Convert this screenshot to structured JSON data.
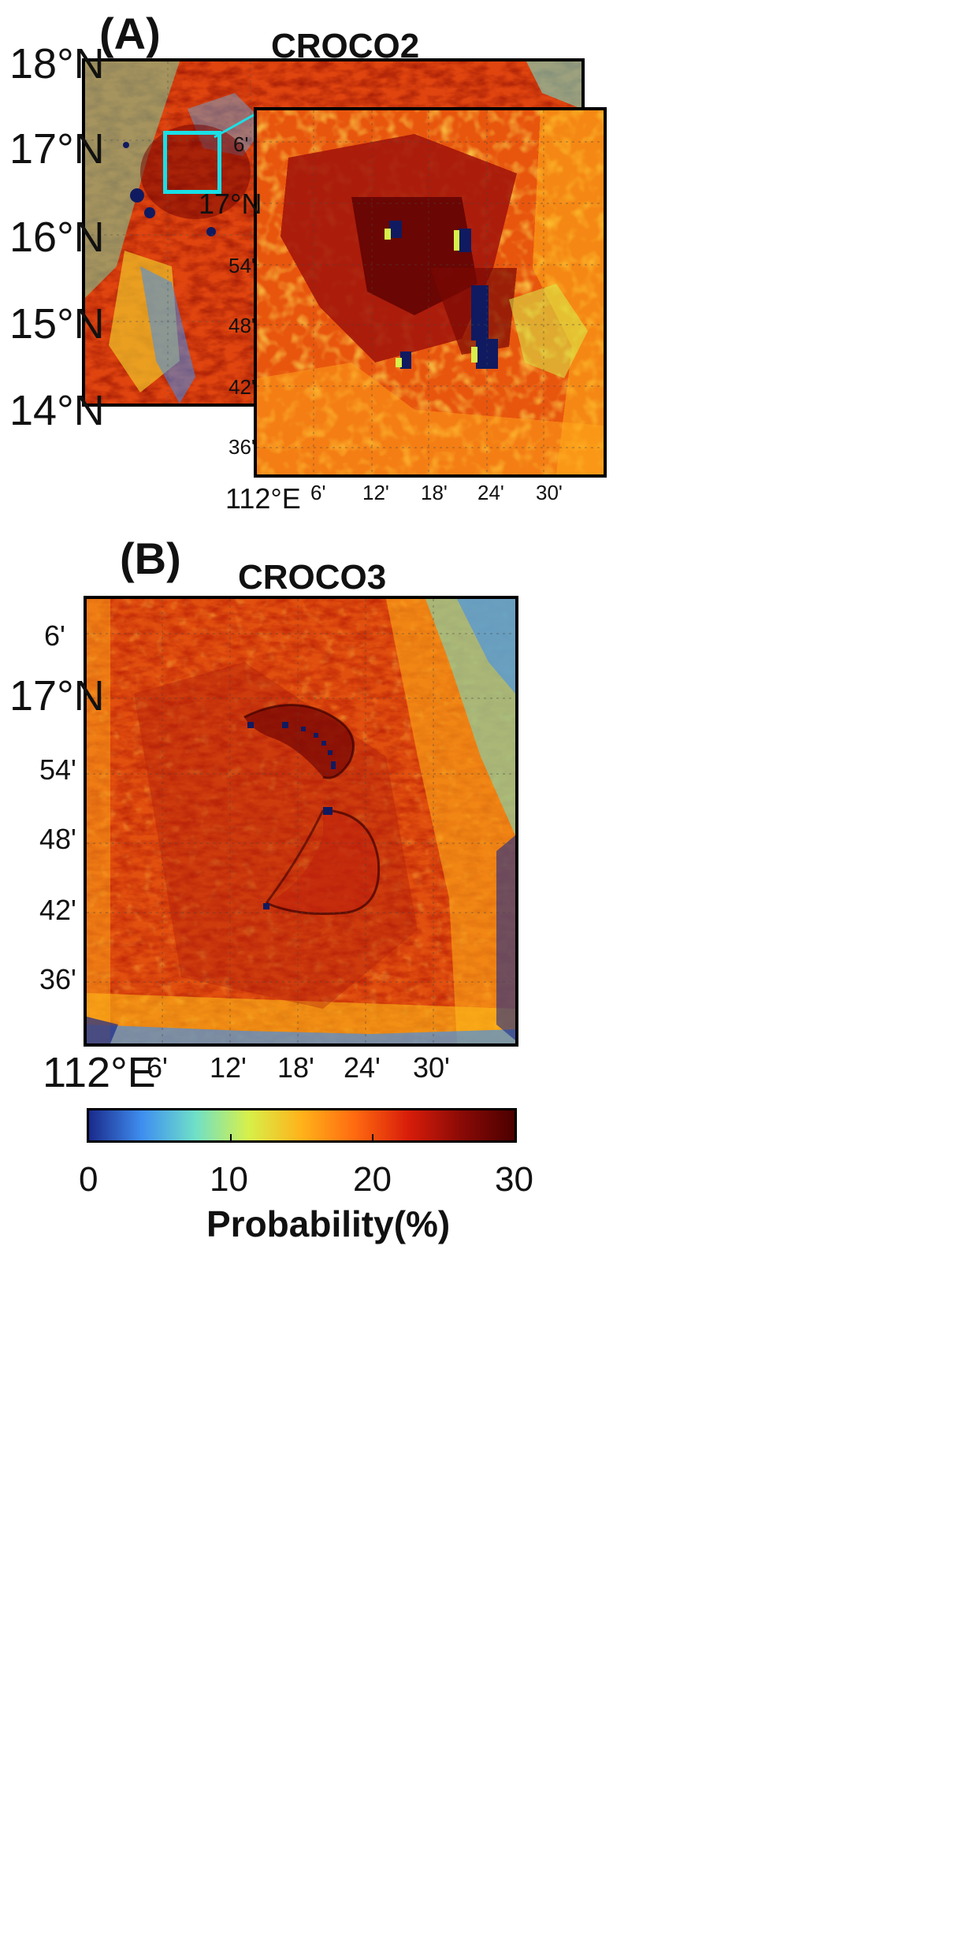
{
  "panel_a": {
    "letter": "(A)",
    "title": "CROCO2",
    "lat_labels": [
      "18°N",
      "17°N",
      "16°N",
      "15°N",
      "14°N"
    ],
    "inset": {
      "lat_labels": [
        "6'",
        "17°N",
        "54'",
        "48'",
        "42'",
        "36'"
      ],
      "lon_labels": [
        "112°E",
        "6'",
        "12'",
        "18'",
        "24'",
        "30'"
      ]
    }
  },
  "panel_b": {
    "letter": "(B)",
    "title": "CROCO3",
    "lat_labels": [
      "6'",
      "17°N",
      "54'",
      "48'",
      "42'",
      "36'"
    ],
    "lon_labels": [
      "112°E",
      "6'",
      "12'",
      "18'",
      "24'",
      "30'"
    ]
  },
  "colorbar": {
    "title": "Probability(%)",
    "tick_labels": [
      "0",
      "10",
      "20",
      "30"
    ],
    "range": [
      0,
      30
    ],
    "colors": [
      "#1a2a8c",
      "#3f8ff0",
      "#6fe0c8",
      "#d7f04a",
      "#ffb21a",
      "#ff6a10",
      "#d81d0a",
      "#8a0a06",
      "#4b0000"
    ]
  },
  "accent": {
    "inset_box": "#19e0e6"
  }
}
